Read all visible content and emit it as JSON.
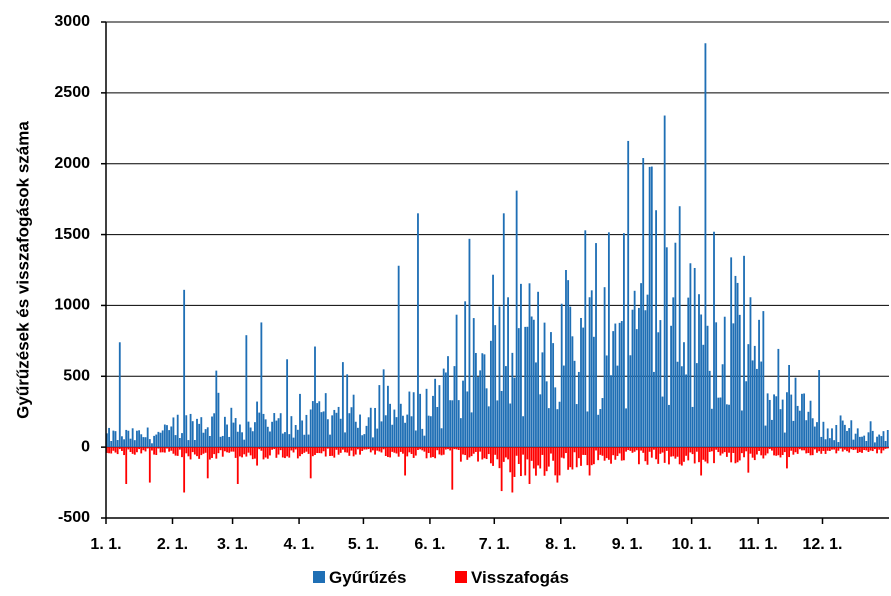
{
  "chart_data": {
    "type": "bar",
    "title": "",
    "xlabel": "",
    "ylabel": "Gyűrűzések és visszafogások száma",
    "ylim": [
      -500,
      3000
    ],
    "yticks": [
      -500,
      0,
      500,
      1000,
      1500,
      2000,
      2500,
      3000
    ],
    "x_tick_labels": [
      "1. 1.",
      "2. 1.",
      "3. 1.",
      "4. 1.",
      "5. 1.",
      "6. 1.",
      "7. 1.",
      "8. 1.",
      "9. 1.",
      "10. 1.",
      "11. 1.",
      "12. 1."
    ],
    "x_tick_day_of_year": [
      1,
      32,
      60,
      91,
      121,
      152,
      182,
      213,
      244,
      274,
      305,
      335
    ],
    "days_in_year": 365,
    "grid": "horizontal",
    "legend_position": "bottom-center",
    "colors": {
      "ringing": "#1f6fb5",
      "recapture": "#ff0000"
    },
    "series": [
      {
        "name": "Gyűrűzés",
        "note_monthly_envelope": "daily values approximated from the chart",
        "monthly_typical": [
          80,
          170,
          150,
          200,
          220,
          420,
          700,
          750,
          900,
          750,
          250,
          80
        ],
        "peaks": [
          {
            "day": 7,
            "value": 740
          },
          {
            "day": 37,
            "value": 1110
          },
          {
            "day": 52,
            "value": 540
          },
          {
            "day": 66,
            "value": 790
          },
          {
            "day": 73,
            "value": 880
          },
          {
            "day": 85,
            "value": 620
          },
          {
            "day": 98,
            "value": 710
          },
          {
            "day": 111,
            "value": 600
          },
          {
            "day": 137,
            "value": 1280
          },
          {
            "day": 146,
            "value": 1650
          },
          {
            "day": 170,
            "value": 1470
          },
          {
            "day": 186,
            "value": 1650
          },
          {
            "day": 192,
            "value": 1810
          },
          {
            "day": 215,
            "value": 1250
          },
          {
            "day": 224,
            "value": 1530
          },
          {
            "day": 229,
            "value": 1440
          },
          {
            "day": 242,
            "value": 1510
          },
          {
            "day": 251,
            "value": 2040
          },
          {
            "day": 255,
            "value": 1980
          },
          {
            "day": 261,
            "value": 2340
          },
          {
            "day": 268,
            "value": 1700
          },
          {
            "day": 280,
            "value": 2850
          },
          {
            "day": 284,
            "value": 1520
          },
          {
            "day": 298,
            "value": 1350
          },
          {
            "day": 307,
            "value": 960
          },
          {
            "day": 322,
            "value": 490
          }
        ]
      },
      {
        "name": "Visszafogás",
        "monthly_typical": [
          -40,
          -60,
          -60,
          -50,
          -50,
          -70,
          -150,
          -110,
          -90,
          -80,
          -50,
          -30
        ],
        "peaks": [
          {
            "day": 10,
            "value": -260
          },
          {
            "day": 21,
            "value": -250
          },
          {
            "day": 37,
            "value": -320
          },
          {
            "day": 48,
            "value": -220
          },
          {
            "day": 62,
            "value": -260
          },
          {
            "day": 71,
            "value": -130
          },
          {
            "day": 96,
            "value": -220
          },
          {
            "day": 140,
            "value": -200
          },
          {
            "day": 162,
            "value": -300
          },
          {
            "day": 185,
            "value": -310
          },
          {
            "day": 190,
            "value": -320
          },
          {
            "day": 198,
            "value": -260
          },
          {
            "day": 211,
            "value": -250
          },
          {
            "day": 226,
            "value": -200
          },
          {
            "day": 278,
            "value": -200
          },
          {
            "day": 300,
            "value": -180
          },
          {
            "day": 318,
            "value": -150
          }
        ]
      }
    ]
  }
}
